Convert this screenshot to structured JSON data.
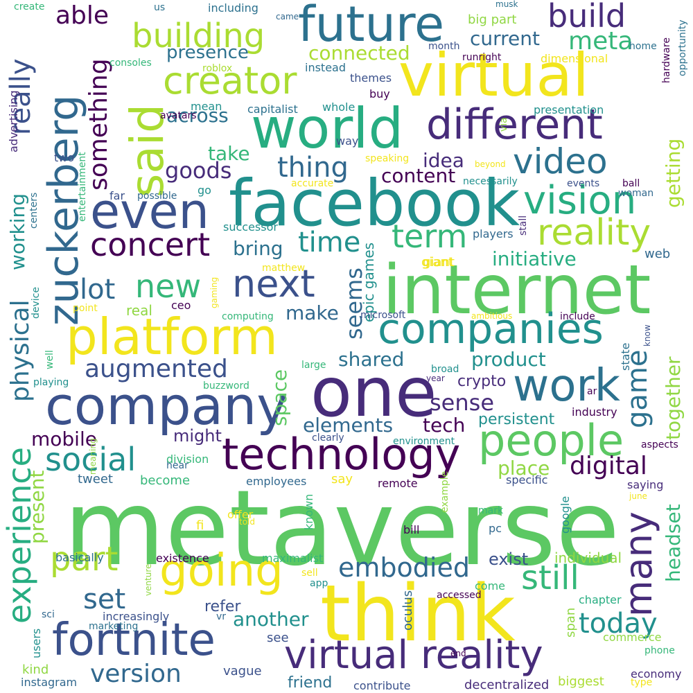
{
  "palette": {
    "c1": "#472c7a",
    "c2": "#3b518b",
    "c3": "#2c718e",
    "c4": "#21908d",
    "c5": "#27ad81",
    "c6": "#5cc863",
    "c7": "#aadc32",
    "c8": "#f2e51d",
    "c9": "#440154",
    "c10": "#31688e",
    "c11": "#35b779",
    "c12": "#90d743"
  },
  "words": [
    "metaverse",
    "think",
    "one",
    "internet",
    "facebook",
    "company",
    "virtual",
    "world",
    "platform",
    "future",
    "zuckerberg",
    "said",
    "even",
    "different",
    "technology",
    "people",
    "companies",
    "work",
    "going",
    "fortnite",
    "virtual reality",
    "creator",
    "vision",
    "next",
    "many",
    "game",
    "new",
    "concert",
    "experience",
    "physical",
    "social",
    "reality",
    "building",
    "really",
    "video",
    "digital",
    "part",
    "still",
    "embodied",
    "today",
    "version",
    "augmented",
    "term",
    "time",
    "thing",
    "build",
    "something",
    "set",
    "lot",
    "elements",
    "goods",
    "able",
    "meta",
    "presence",
    "connected",
    "across",
    "current",
    "sense",
    "shared",
    "content",
    "initiative",
    "product",
    "seems",
    "together",
    "headset",
    "present",
    "bring",
    "tech",
    "mobile",
    "space",
    "take",
    "idea",
    "working",
    "getting",
    "make",
    "crypto",
    "another",
    "persistent",
    "place",
    "might",
    "exist",
    "epic games",
    "individual",
    "advertising",
    "refer",
    "users",
    "friend",
    "kind",
    "instagram",
    "decentralized",
    "biggest",
    "contribute",
    "economy",
    "type",
    "phone",
    "commerce",
    "span",
    "chapter",
    "industry",
    "google",
    "specific",
    "saying",
    "aspects",
    "example",
    "offer",
    "mark",
    "come",
    "pc",
    "bill",
    "sell",
    "app",
    "oculus",
    "remote",
    "known",
    "become",
    "say",
    "tweet",
    "employees",
    "hear",
    "division",
    "clearly",
    "environment",
    "ar",
    "large",
    "microsoft",
    "include",
    "state",
    "know",
    "ambitious",
    "well",
    "device",
    "buzzword",
    "playing",
    "real",
    "ceo",
    "point",
    "gaming",
    "computing",
    "matthew",
    "successor",
    "players",
    "stall",
    "web",
    "giant",
    "far",
    "possible",
    "go",
    "centers",
    "two",
    "entertainment",
    "necessarily",
    "events",
    "woman",
    "ball",
    "beyond",
    "accurate",
    "speaking",
    "way",
    "via",
    "capitalist",
    "whole",
    "mean",
    "avatars",
    "buy",
    "themes",
    "instead",
    "presentation",
    "dimensional",
    "opportunity",
    "hardware",
    "home",
    "runright",
    "roblox",
    "consoles",
    "big part",
    "month",
    "including",
    "came",
    "musk",
    "create",
    "us",
    "giant",
    "broad",
    "year",
    "told",
    "meaning",
    "basically",
    "existence",
    "maximalist",
    "venture",
    "accessed",
    "sci",
    "increasingly",
    "marketing",
    "vr",
    "see",
    "fi",
    "june",
    "end",
    "vague"
  ]
}
